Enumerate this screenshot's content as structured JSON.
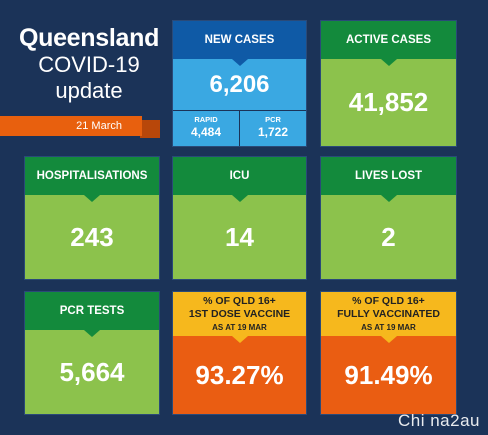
{
  "title": {
    "line1": "Queensland",
    "line2": "COVID-19",
    "line3": "update"
  },
  "date": "21 March",
  "new_cases": {
    "label": "NEW CASES",
    "value": "6,206",
    "rapid": {
      "label": "RAPID",
      "value": "4,484"
    },
    "pcr": {
      "label": "PCR",
      "value": "1,722"
    }
  },
  "active_cases": {
    "label": "ACTIVE CASES",
    "value": "41,852"
  },
  "hospitalisations": {
    "label": "HOSPITALISATIONS",
    "value": "243"
  },
  "icu": {
    "label": "ICU",
    "value": "14"
  },
  "lives_lost": {
    "label": "LIVES LOST",
    "value": "2"
  },
  "pcr_tests": {
    "label": "PCR TESTS",
    "value": "5,664"
  },
  "first_dose": {
    "label_line1": "% OF QLD 16+",
    "label_line2": "1ST DOSE VACCINE",
    "label_line3": "AS AT 19 MAR",
    "value": "93.27%"
  },
  "fully_vaccinated": {
    "label_line1": "% OF QLD 16+",
    "label_line2": "FULLY VACCINATED",
    "label_line3": "AS AT 19 MAR",
    "value": "91.49%"
  },
  "watermark": "Chi na2au",
  "colors": {
    "background": "#1b3358",
    "green_header": "#138a3c",
    "green_body": "#8cc24c",
    "blue_header": "#0f5aa6",
    "blue_body": "#3aa8e2",
    "yellow_header": "#f6b81d",
    "orange_body": "#ea5d12",
    "ribbon": "#e8600e"
  }
}
